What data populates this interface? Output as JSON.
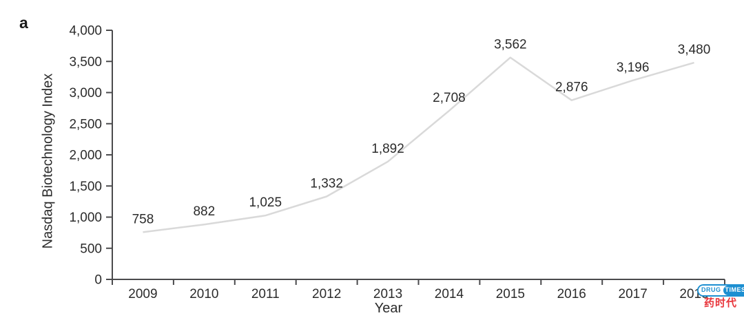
{
  "panel_label": "a",
  "chart_data": {
    "type": "line",
    "title": "",
    "xlabel": "Year",
    "ylabel": "Nasdaq Biotechnology Index",
    "categories": [
      "2009",
      "2010",
      "2011",
      "2012",
      "2013",
      "2014",
      "2015",
      "2016",
      "2017",
      "2018"
    ],
    "values": [
      758,
      882,
      1025,
      1332,
      1892,
      2708,
      3562,
      2876,
      3196,
      3480
    ],
    "point_labels": [
      "758",
      "882",
      "1,025",
      "1,332",
      "1,892",
      "2,708",
      "3,562",
      "2,876",
      "3,196",
      "3,480"
    ],
    "ylim": [
      0,
      4000
    ],
    "ytick_values": [
      0,
      500,
      1000,
      1500,
      2000,
      2500,
      3000,
      3500,
      4000
    ],
    "ytick_labels": [
      "0",
      "500",
      "1,000",
      "1,500",
      "2,000",
      "2,500",
      "3,000",
      "3,500",
      "4,000"
    ],
    "grid": false,
    "legend": "none",
    "line_color": "#d9d9d9",
    "axis_color": "#4a4a4c",
    "text_color": "#2b2b2b"
  },
  "watermark": {
    "brand_left": "DRUG",
    "brand_right": "TIMES",
    "brand_cn": "药时代",
    "blue": "#1d8fd1",
    "red": "#e8373d"
  }
}
